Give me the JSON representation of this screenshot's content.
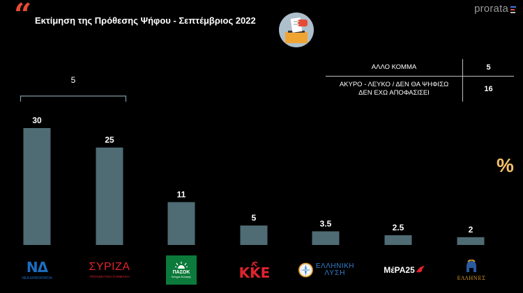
{
  "header": {
    "quote_mark": "“",
    "title": "Εκτίμηση της Πρόθεσης Ψήφου - Σεπτέμβριος 2022",
    "brand": "prorata"
  },
  "side_table": {
    "rows": [
      {
        "label": "ΑΛΛΟ ΚΟΜΜΑ",
        "value": "5"
      },
      {
        "label": "ΑΚΥΡΟ - ΛΕΥΚΟ / ΔΕΝ ΘΑ ΨΗΦΙΣΩ\nΔΕΝ ΕΧΩ ΑΠΟΦΑΣΙΣΕΙ",
        "value": "16"
      }
    ]
  },
  "unit_symbol": "%",
  "colors": {
    "bar": "#4f6b73",
    "accent_quote": "#e64b35",
    "percent": "#f5c06b",
    "bracket": "#7f9aa6"
  },
  "chart_data": {
    "type": "bar",
    "categories": [
      "ΝΔ",
      "ΣΥΡΙΖΑ",
      "ΠΑΣΟΚ",
      "ΚΚΕ",
      "ΕΛΛΗΝΙΚΗ ΛΥΣΗ",
      "ΜέΡΑ25",
      "ΕΛΛΗΝΕΣ"
    ],
    "values": [
      30,
      25,
      11,
      5,
      3.5,
      2.5,
      2
    ],
    "value_labels": [
      "30",
      "25",
      "11",
      "5",
      "3.5",
      "2.5",
      "2"
    ],
    "ylim": [
      0,
      30
    ],
    "grid": false,
    "annotation": {
      "text": "5",
      "from": "ΝΔ",
      "to": "ΣΥΡΙΖΑ"
    }
  },
  "logos": [
    {
      "icon": "nd-logo",
      "main": "ΝΔ",
      "sub": "ΝΕΑ ΔΗΜΟΚΡΑΤΙΑ",
      "color": "#1b6ec2"
    },
    {
      "icon": "syriza-logo",
      "main": "ΣΥΡΙΖΑ",
      "sub": "ΠΡΟΟΔΕΥΤΙΚΗ ΣΥΜΜΑΧΙΑ",
      "color": "#e0242c"
    },
    {
      "icon": "pasok-logo",
      "main": "ΠΑΣΟΚ",
      "sub": "Κίνημα Αλλαγής",
      "color": "#0b7a3b"
    },
    {
      "icon": "kke-logo",
      "main": "ΚΚΕ",
      "sub": "",
      "color": "#e0242c"
    },
    {
      "icon": "elliniki-lysi-logo",
      "main": "ΕΛΛΗΝΙΚΗ",
      "sub": "ΛΥΣΗ",
      "color": "#2f7fd0"
    },
    {
      "icon": "mera25-logo",
      "main": "ΜέΡΑ25",
      "sub": "",
      "color": "#e0242c"
    },
    {
      "icon": "ellines-logo",
      "main": "ΕΛΛΗΝΕΣ",
      "sub": "",
      "color": "#2a5aa0"
    }
  ]
}
